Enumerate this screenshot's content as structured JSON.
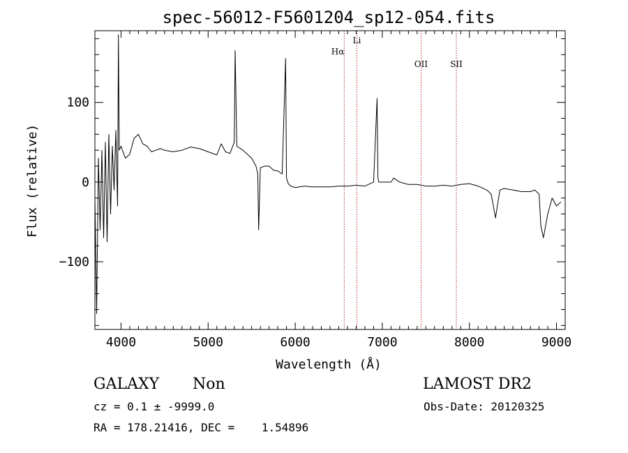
{
  "chart_data": {
    "type": "line",
    "title": "spec-56012-F5601204_sp12-054.fits",
    "xlabel": "Wavelength (Å)",
    "ylabel": "Flux (relative)",
    "xlim": [
      3700,
      9100
    ],
    "ylim": [
      -185,
      190
    ],
    "x_ticks": [
      4000,
      5000,
      6000,
      7000,
      8000,
      9000
    ],
    "y_ticks": [
      -100,
      0,
      100
    ],
    "line_markers": [
      {
        "label": "Hα",
        "wavelength": 6563
      },
      {
        "label": "Li",
        "wavelength": 6708
      },
      {
        "label": "OII",
        "wavelength": 7445
      },
      {
        "label": "SII",
        "wavelength": 7850
      }
    ],
    "spectrum": {
      "x": [
        3700,
        3720,
        3740,
        3760,
        3780,
        3800,
        3820,
        3840,
        3860,
        3880,
        3900,
        3920,
        3940,
        3960,
        3970,
        3980,
        4000,
        4050,
        4100,
        4150,
        4200,
        4250,
        4300,
        4350,
        4400,
        4450,
        4500,
        4600,
        4700,
        4800,
        4900,
        5000,
        5100,
        5150,
        5200,
        5250,
        5300,
        5310,
        5330,
        5400,
        5500,
        5550,
        5570,
        5580,
        5600,
        5650,
        5700,
        5750,
        5800,
        5850,
        5890,
        5900,
        5920,
        5950,
        6000,
        6100,
        6200,
        6300,
        6400,
        6500,
        6600,
        6700,
        6800,
        6900,
        6940,
        6950,
        6960,
        7000,
        7100,
        7130,
        7200,
        7300,
        7400,
        7500,
        7600,
        7700,
        7800,
        7900,
        8000,
        8100,
        8200,
        8250,
        8300,
        8350,
        8400,
        8500,
        8600,
        8700,
        8750,
        8800,
        8820,
        8850,
        8900,
        8950,
        9000,
        9050
      ],
      "y": [
        -20,
        -165,
        30,
        -60,
        40,
        -70,
        50,
        -75,
        60,
        -40,
        45,
        -10,
        65,
        -30,
        185,
        40,
        45,
        30,
        35,
        55,
        60,
        48,
        45,
        38,
        40,
        42,
        40,
        38,
        40,
        44,
        42,
        38,
        34,
        48,
        38,
        36,
        50,
        165,
        45,
        40,
        30,
        20,
        10,
        -60,
        18,
        20,
        20,
        15,
        14,
        10,
        155,
        5,
        -2,
        -5,
        -7,
        -5,
        -6,
        -6,
        -6,
        -5,
        -5,
        -4,
        -5,
        0,
        105,
        5,
        0,
        0,
        0,
        5,
        0,
        -3,
        -3,
        -5,
        -5,
        -4,
        -5,
        -3,
        -2,
        -5,
        -10,
        -15,
        -45,
        -10,
        -8,
        -10,
        -12,
        -12,
        -10,
        -15,
        -55,
        -70,
        -40,
        -20,
        -30,
        -25
      ]
    }
  },
  "info": {
    "object_class": "GALAXY",
    "subclass": "Non",
    "survey": "LAMOST DR2",
    "cz_line": "cz = 0.1 ± -9999.0",
    "obs_date": "Obs-Date: 20120325",
    "coords": "RA = 178.21416, DEC =    1.54896"
  }
}
